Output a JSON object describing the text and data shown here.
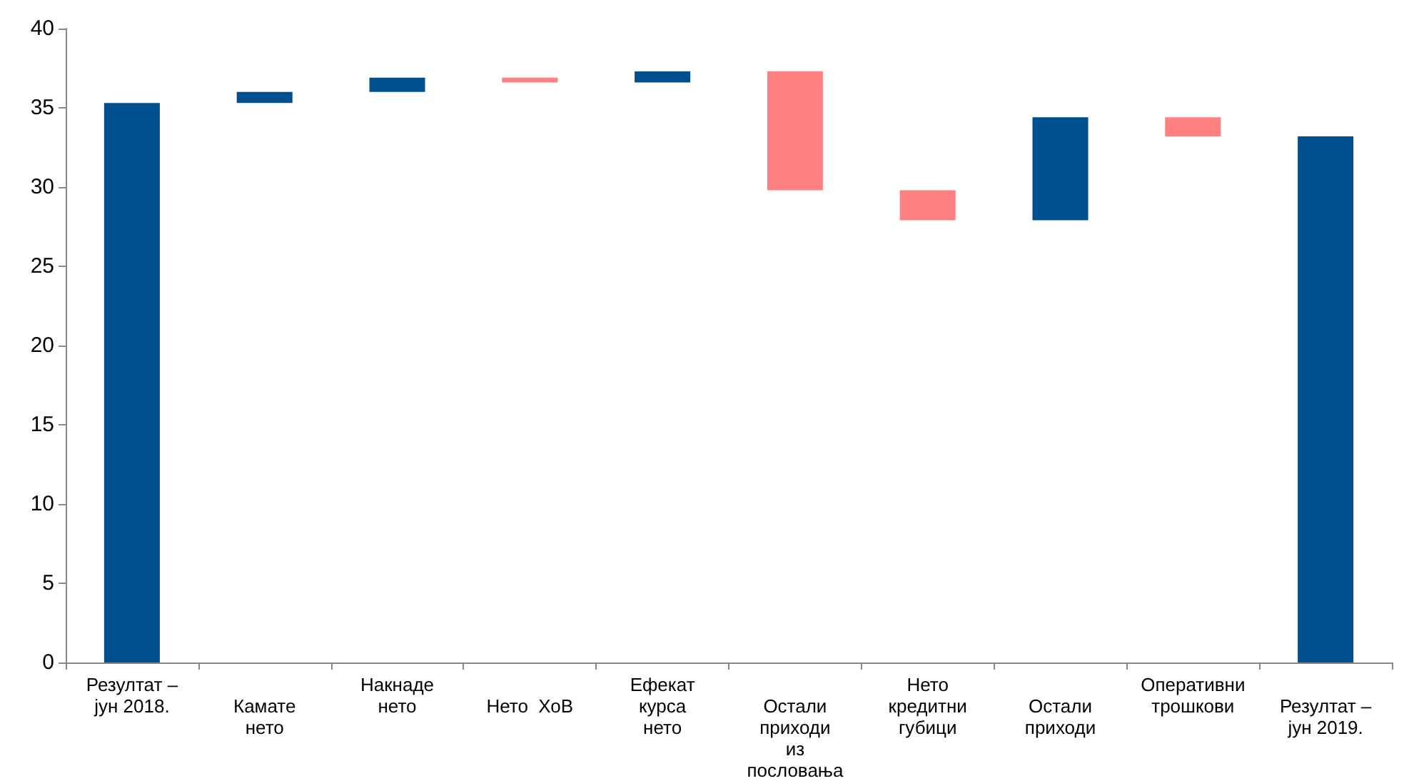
{
  "chart_data": {
    "type": "bar",
    "categories": [
      "Резултат –\nјун 2018.",
      "Камате\nнето",
      "Накнаде\nнето",
      "Нето  ХоВ",
      "Ефекат\nкурса\nнето",
      "Остали\nприходи\nиз\nпословања",
      "Нето\nкредитни\nгубици",
      "Остали\nприходи",
      "Оперативни\nтрошкови",
      "Резултат –\nјун 2019."
    ],
    "base": [
      0,
      35.3,
      36.0,
      36.9,
      36.6,
      37.3,
      29.8,
      27.9,
      34.4,
      0
    ],
    "values": [
      35.3,
      0.7,
      0.9,
      -0.3,
      0.7,
      -7.5,
      -1.9,
      6.5,
      -1.2,
      33.2
    ],
    "colors": [
      "#00508f",
      "#00508f",
      "#00508f",
      "#ff8080",
      "#00508f",
      "#ff8080",
      "#ff8080",
      "#00508f",
      "#ff8080",
      "#00508f"
    ],
    "ylim": [
      0,
      40
    ],
    "yticks": [
      0,
      5,
      10,
      15,
      20,
      25,
      30,
      35,
      40
    ],
    "grid": false
  }
}
